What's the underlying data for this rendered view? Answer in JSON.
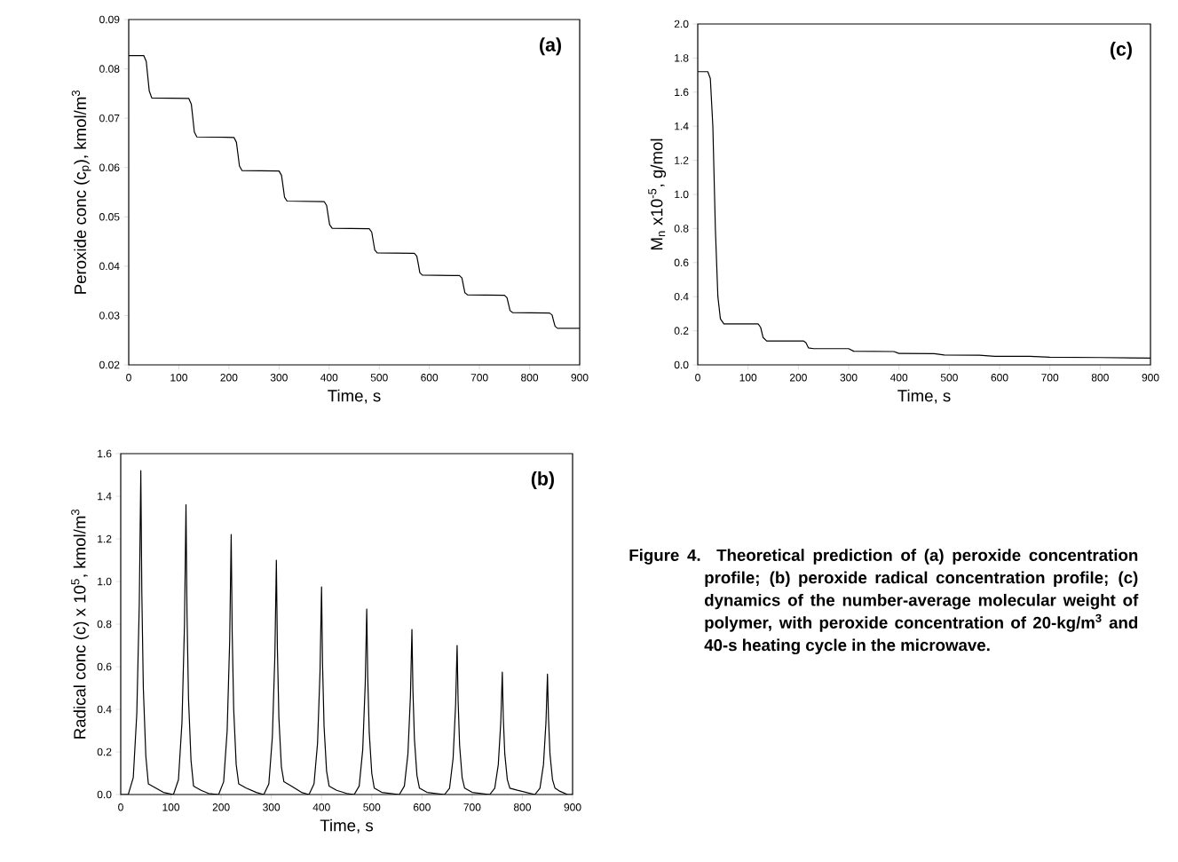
{
  "chart_data": [
    {
      "type": "line",
      "title": "(a)",
      "xlabel": "Time, s",
      "ylabel": "Peroxide conc (c$_{p}$), kmol/m$^{3}$",
      "color": "#000000",
      "marker": "none",
      "line_style": "solid",
      "xlim": [
        0,
        900
      ],
      "ylim": [
        0.02,
        0.09
      ],
      "xticks": [
        0,
        100,
        200,
        300,
        400,
        500,
        600,
        700,
        800,
        900
      ],
      "yticks": [
        0.02,
        0.03,
        0.04,
        0.05,
        0.06,
        0.07,
        0.08,
        0.09
      ],
      "x": [
        0,
        30,
        35,
        38,
        41,
        46,
        120,
        125,
        128,
        131,
        136,
        210,
        215,
        218,
        221,
        226,
        300,
        305,
        308,
        311,
        316,
        390,
        395,
        398,
        401,
        406,
        480,
        485,
        488,
        491,
        496,
        570,
        575,
        578,
        581,
        586,
        660,
        665,
        668,
        671,
        676,
        750,
        755,
        758,
        761,
        766,
        840,
        845,
        848,
        851,
        856,
        900
      ],
      "values": [
        0.0827,
        0.0827,
        0.0815,
        0.0785,
        0.0755,
        0.0741,
        0.074,
        0.0728,
        0.07,
        0.0672,
        0.0662,
        0.0661,
        0.0651,
        0.0627,
        0.0603,
        0.0594,
        0.0593,
        0.0584,
        0.0562,
        0.054,
        0.0532,
        0.0531,
        0.0523,
        0.0503,
        0.0484,
        0.0477,
        0.0476,
        0.0469,
        0.0451,
        0.0433,
        0.0427,
        0.0426,
        0.042,
        0.0404,
        0.0387,
        0.0382,
        0.0381,
        0.0376,
        0.0361,
        0.0346,
        0.0342,
        0.0341,
        0.0336,
        0.0323,
        0.031,
        0.0306,
        0.0305,
        0.0301,
        0.0289,
        0.0278,
        0.0274,
        0.0274
      ]
    },
    {
      "type": "line",
      "title": "(b)",
      "xlabel": "Time, s",
      "ylabel": "Radical conc (c) x 10$^{5}$, kmol/m$^{3}$",
      "color": "#000000",
      "marker": "none",
      "line_style": "solid",
      "xlim": [
        0,
        900
      ],
      "ylim": [
        0,
        1.6
      ],
      "xticks": [
        0,
        100,
        200,
        300,
        400,
        500,
        600,
        700,
        800,
        900
      ],
      "yticks": [
        {
          "value": 0,
          "label": "0.0"
        },
        0.2,
        0.4,
        0.6,
        0.8,
        {
          "value": 1,
          "label": "1.0"
        },
        1.2,
        1.4,
        1.6
      ],
      "x": [
        0,
        15,
        25,
        32,
        37,
        40,
        42,
        45,
        50,
        55,
        70,
        85,
        105,
        115,
        122,
        127,
        130,
        132,
        135,
        140,
        145,
        160,
        175,
        195,
        205,
        212,
        217,
        220,
        222,
        225,
        230,
        235,
        250,
        270,
        285,
        295,
        302,
        307,
        310,
        312,
        315,
        320,
        325,
        340,
        360,
        375,
        385,
        392,
        397,
        400,
        402,
        405,
        410,
        415,
        430,
        450,
        465,
        475,
        482,
        487,
        490,
        492,
        495,
        500,
        505,
        520,
        555,
        565,
        572,
        577,
        580,
        582,
        585,
        590,
        595,
        610,
        645,
        655,
        662,
        667,
        670,
        672,
        675,
        680,
        685,
        700,
        735,
        745,
        752,
        757,
        760,
        762,
        765,
        770,
        775,
        790,
        825,
        835,
        842,
        847,
        850,
        852,
        855,
        860,
        865,
        875,
        890,
        900
      ],
      "values": [
        0,
        0,
        0.08,
        0.38,
        0.9,
        1.52,
        0.95,
        0.5,
        0.18,
        0.05,
        0.03,
        0.01,
        0,
        0.07,
        0.34,
        0.8,
        1.36,
        0.85,
        0.45,
        0.16,
        0.04,
        0.02,
        0.005,
        0,
        0.06,
        0.3,
        0.72,
        1.22,
        0.76,
        0.4,
        0.14,
        0.05,
        0.03,
        0.01,
        0,
        0.05,
        0.27,
        0.65,
        1.1,
        0.69,
        0.36,
        0.13,
        0.06,
        0.04,
        0.01,
        0,
        0.05,
        0.24,
        0.58,
        0.975,
        0.61,
        0.32,
        0.11,
        0.04,
        0.02,
        0.005,
        0,
        0.04,
        0.21,
        0.52,
        0.87,
        0.55,
        0.29,
        0.1,
        0.03,
        0.01,
        0,
        0.04,
        0.19,
        0.46,
        0.775,
        0.49,
        0.26,
        0.09,
        0.03,
        0.01,
        0,
        0.03,
        0.17,
        0.42,
        0.7,
        0.44,
        0.23,
        0.08,
        0.03,
        0.01,
        0,
        0.03,
        0.14,
        0.34,
        0.575,
        0.36,
        0.19,
        0.07,
        0.03,
        0.02,
        0,
        0.03,
        0.14,
        0.34,
        0.565,
        0.36,
        0.19,
        0.07,
        0.03,
        0.015,
        0,
        0
      ]
    },
    {
      "type": "line",
      "title": "(c)",
      "xlabel": "Time, s",
      "ylabel": "M$_{n}$ x10$^{-5}$, g/mol",
      "color": "#000000",
      "marker": "none",
      "line_style": "solid",
      "xlim": [
        0,
        900
      ],
      "ylim": [
        0,
        2
      ],
      "xticks": [
        0,
        100,
        200,
        300,
        400,
        500,
        600,
        700,
        800,
        900
      ],
      "yticks": [
        {
          "value": 0,
          "label": "0.0"
        },
        0.2,
        0.4,
        0.6,
        0.8,
        {
          "value": 1,
          "label": "1.0"
        },
        1.2,
        1.4,
        1.6,
        1.8,
        {
          "value": 2,
          "label": "2.0"
        }
      ],
      "x": [
        0,
        20,
        25,
        30,
        35,
        40,
        45,
        52,
        120,
        125,
        130,
        137,
        210,
        215,
        220,
        230,
        300,
        310,
        390,
        400,
        470,
        490,
        560,
        590,
        660,
        700,
        800,
        900
      ],
      "values": [
        1.72,
        1.72,
        1.68,
        1.4,
        0.8,
        0.4,
        0.27,
        0.24,
        0.24,
        0.22,
        0.16,
        0.14,
        0.14,
        0.13,
        0.1,
        0.095,
        0.095,
        0.08,
        0.078,
        0.067,
        0.066,
        0.058,
        0.057,
        0.05,
        0.05,
        0.045,
        0.043,
        0.04
      ]
    },
    {
      "type": "other",
      "annotations": [
        "Figure 4. Theoretical prediction of (a) peroxide concentration profile; (b) peroxide radical concentration profile; (c) dynamics of the number-average molecular weight of polymer, with peroxide concentration of 20-kg/m$^{3}$ and 40-s heating cycle in the microwave."
      ]
    }
  ]
}
